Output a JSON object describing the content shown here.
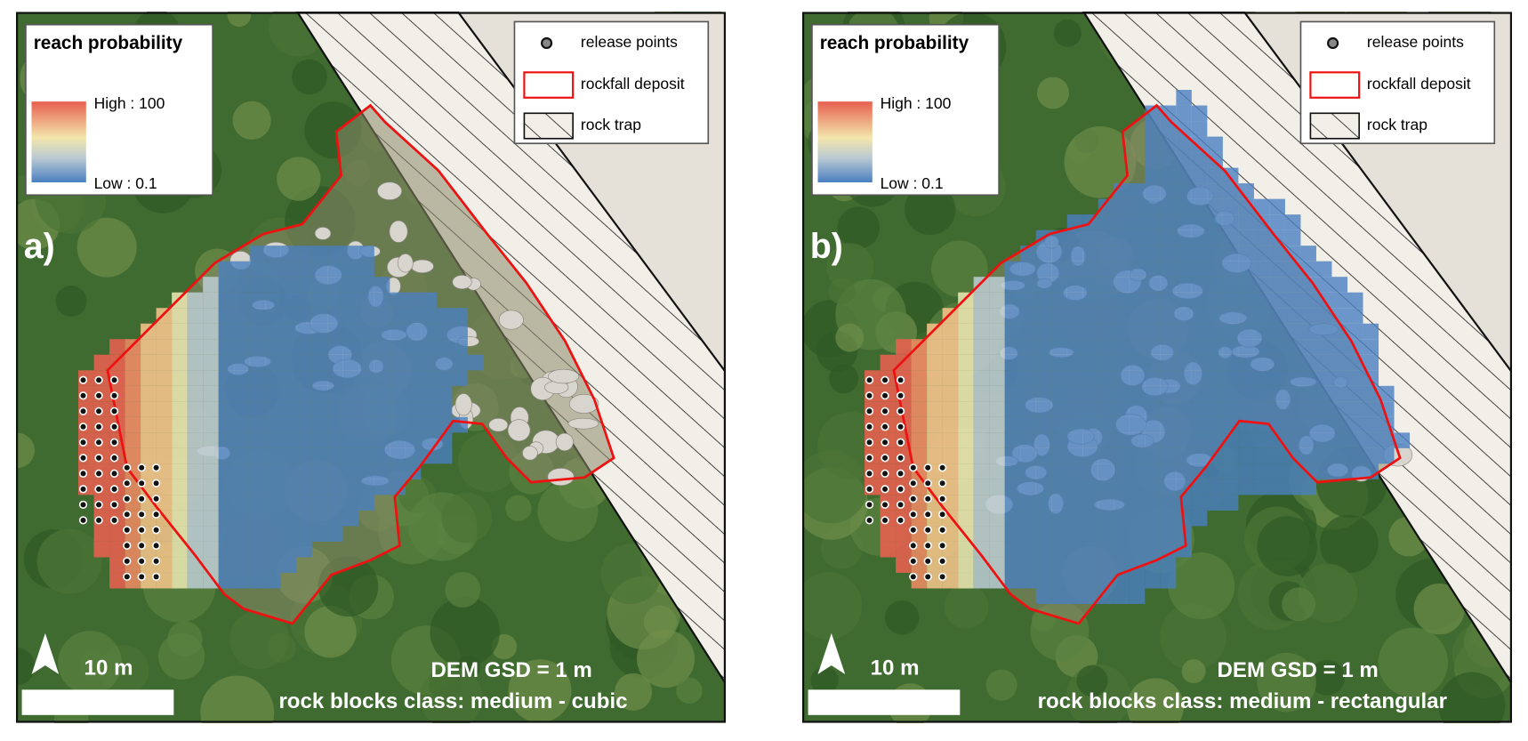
{
  "panels": [
    {
      "label": "a)",
      "legend": {
        "title": "reach probability",
        "high": "High : 100",
        "low": "Low : 0.1"
      },
      "key": {
        "release": "release points",
        "deposit": "rockfall deposit",
        "trap": "rock trap"
      },
      "scale": "10 m",
      "dem": "DEM GSD = 1 m",
      "blocks": "rock blocks class: medium - cubic"
    },
    {
      "label": "b)",
      "legend": {
        "title": "reach probability",
        "high": "High : 100",
        "low": "Low : 0.1"
      },
      "key": {
        "release": "release points",
        "deposit": "rockfall deposit",
        "trap": "rock trap"
      },
      "scale": "10 m",
      "dem": "DEM GSD = 1 m",
      "blocks": "rock blocks class: medium - rectangular"
    }
  ]
}
